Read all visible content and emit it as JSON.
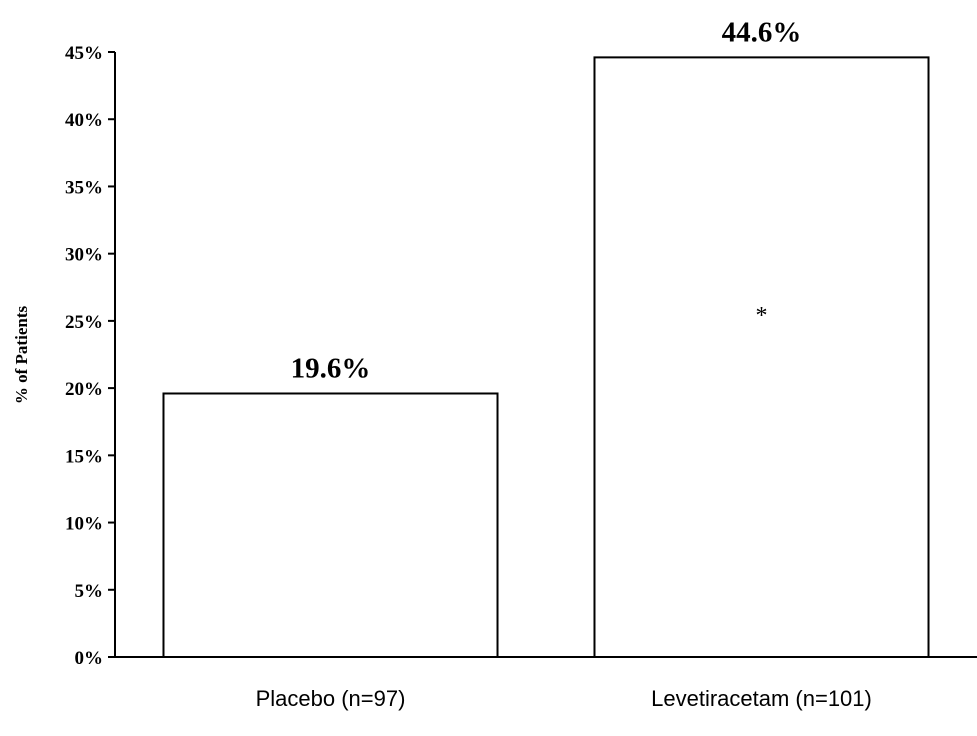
{
  "chart_data": {
    "type": "bar",
    "title": "",
    "xlabel": "",
    "ylabel": "% of Patients",
    "categories": [
      "Placebo (n=97)",
      "Levetiracetam (n=101)"
    ],
    "values": [
      19.6,
      44.6
    ],
    "data_labels": [
      "19.6%",
      "44.6%"
    ],
    "ylim": [
      0,
      45
    ],
    "yticks": [
      0,
      5,
      10,
      15,
      20,
      25,
      30,
      35,
      40,
      45
    ],
    "ytick_labels": [
      "0%",
      "5%",
      "10%",
      "15%",
      "20%",
      "25%",
      "30%",
      "35%",
      "40%",
      "45%"
    ],
    "annotations": [
      {
        "category": "Levetiracetam (n=101)",
        "text": "*"
      }
    ],
    "grid": false,
    "bar_color": "#ffffff",
    "edge_color": "#000000"
  }
}
